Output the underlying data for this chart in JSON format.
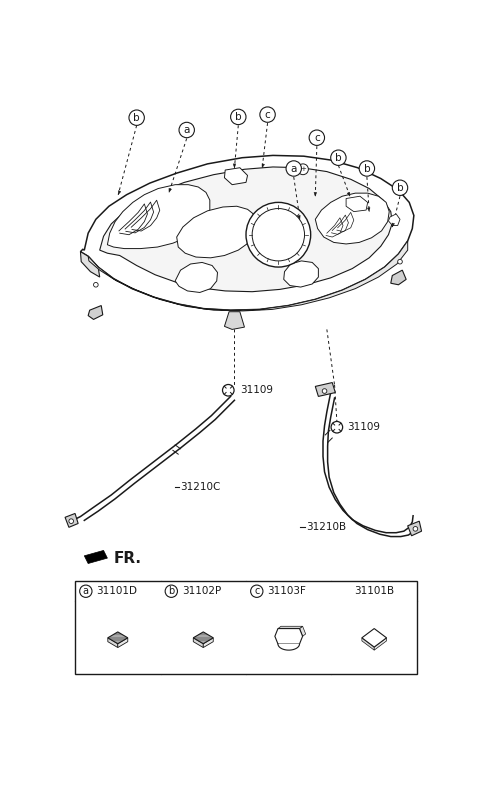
{
  "bg_color": "#ffffff",
  "fig_width": 4.8,
  "fig_height": 8.01,
  "dpi": 100,
  "part_numbers": {
    "31109_1": "31109",
    "31109_2": "31109",
    "31210C": "31210C",
    "31210B": "31210B"
  },
  "table_parts": [
    {
      "label": "a",
      "code": "31101D"
    },
    {
      "label": "b",
      "code": "31102P"
    },
    {
      "label": "c",
      "code": "31103F"
    },
    {
      "label": "",
      "code": "31101B"
    }
  ],
  "fr_label": "FR.",
  "lc": "#1a1a1a",
  "lc_thin": "#333333"
}
